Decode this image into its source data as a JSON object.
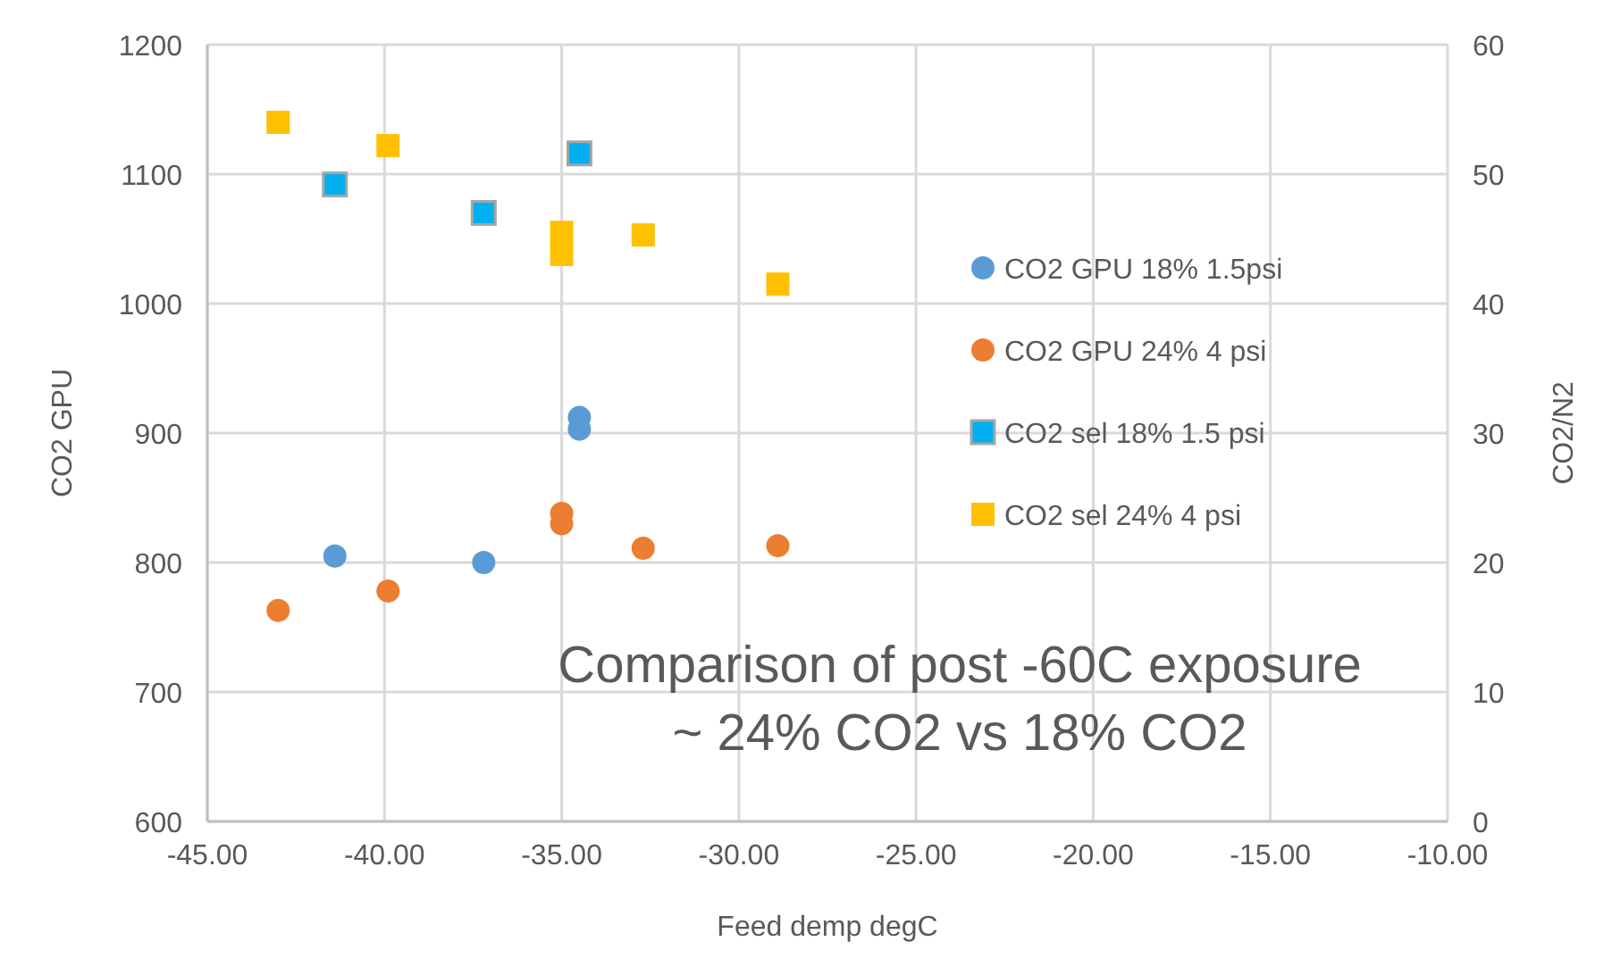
{
  "chart_data": {
    "type": "scatter",
    "xlabel": "Feed demp degC",
    "ylabel": "CO2 GPU",
    "y2label": "CO2/N2",
    "xlim": [
      -45,
      -10
    ],
    "xticks": [
      {
        "value": -45,
        "label": "-45.00"
      },
      {
        "value": -40,
        "label": "-40.00"
      },
      {
        "value": -35,
        "label": "-35.00"
      },
      {
        "value": -30,
        "label": "-30.00"
      },
      {
        "value": -25,
        "label": "-25.00"
      },
      {
        "value": -20,
        "label": "-20.00"
      },
      {
        "value": -15,
        "label": "-15.00"
      },
      {
        "value": -10,
        "label": "-10.00"
      }
    ],
    "ylim": [
      600,
      1200
    ],
    "yticks": [
      600,
      700,
      800,
      900,
      1000,
      1100,
      1200
    ],
    "y2lim": [
      0,
      60
    ],
    "y2ticks": [
      0,
      10,
      20,
      30,
      40,
      50,
      60
    ],
    "grid": true,
    "legend": "right",
    "series": [
      {
        "name": "CO2 GPU 18% 1.5psi",
        "color": "#5b9bd5",
        "marker": "circle",
        "x": [
          -41.4,
          -37.2,
          -34.5,
          -34.5
        ],
        "values": [
          805,
          800,
          912,
          903
        ]
      },
      {
        "name": "CO2 GPU 24% 4 psi",
        "color": "#ed7d31",
        "marker": "circle",
        "x": [
          -43.0,
          -39.9,
          -35.0,
          -35.0,
          -32.7,
          -28.9
        ],
        "values": [
          763,
          778,
          838,
          830,
          811,
          813
        ]
      },
      {
        "name": "CO2 sel 18% 1.5 psi",
        "color": "#00b0f0",
        "marker": "square",
        "axis": "y2",
        "x": [
          -41.4,
          -37.2,
          -34.5
        ],
        "values": [
          49.2,
          47.0,
          51.6
        ]
      },
      {
        "name": "CO2 sel 24% 4 psi",
        "color": "#ffc000",
        "marker": "square",
        "axis": "y2",
        "x": [
          -43.0,
          -39.9,
          -35.0,
          -35.0,
          -32.7,
          -28.9
        ],
        "values": [
          54.0,
          52.2,
          45.5,
          43.8,
          45.3,
          41.5
        ]
      }
    ],
    "annotations": [
      "Comparison of post -60C exposure\n~ 24% CO2 vs 18% CO2"
    ]
  }
}
